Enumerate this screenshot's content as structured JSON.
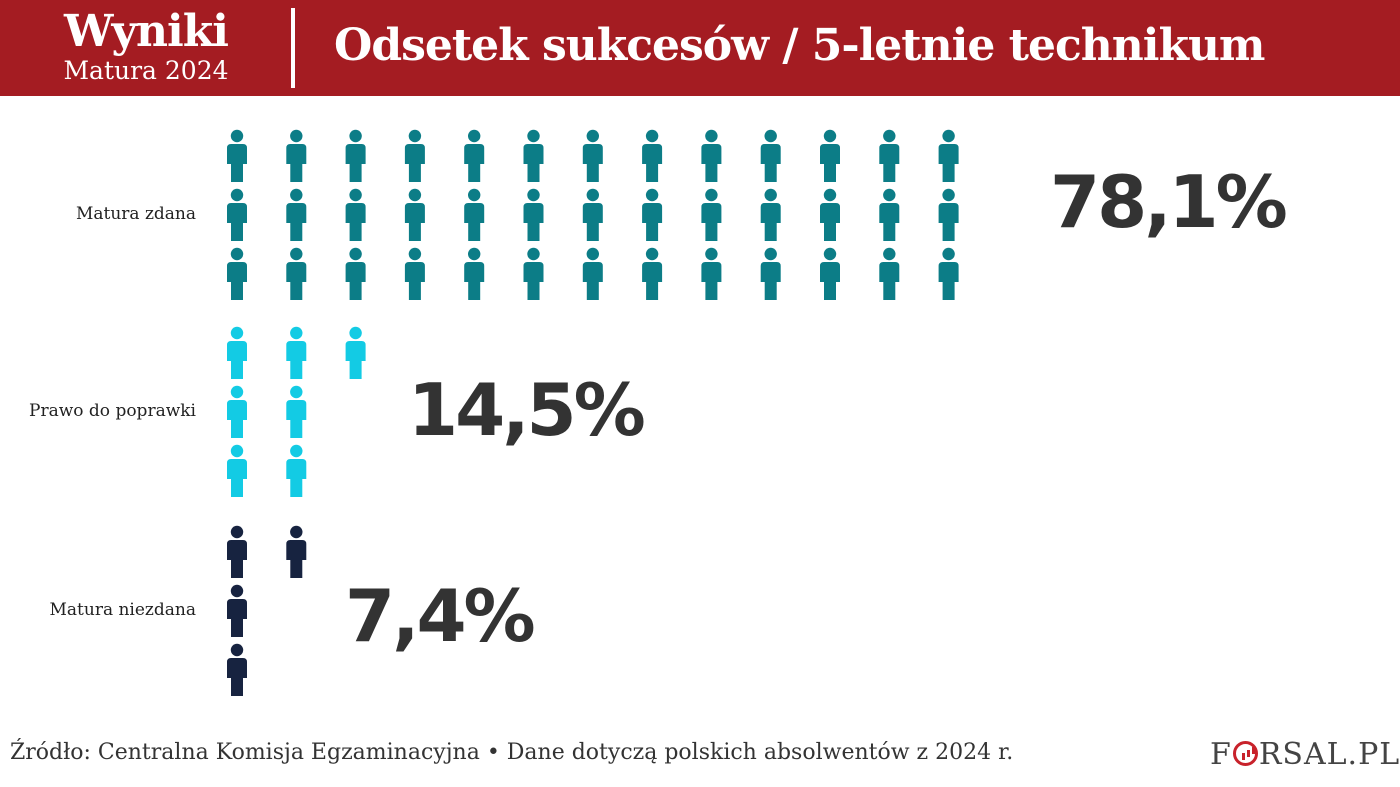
{
  "header": {
    "brand_title": "Wyniki",
    "brand_subtitle": "Matura 2024",
    "title": "Odsetek sukcesów / 5-letnie technikum"
  },
  "chart_data": {
    "type": "pictogram",
    "title": "Odsetek sukcesów / 5-letnie technikum",
    "groups": [
      {
        "label": "Matura zdana",
        "value": 78.1,
        "value_label": "78,1%",
        "icons": 39,
        "rows": 3,
        "color": "#0c7d87"
      },
      {
        "label": "Prawo do poprawki",
        "value": 14.5,
        "value_label": "14,5%",
        "icons": 7,
        "rows": 3,
        "color": "#13cbe4"
      },
      {
        "label": "Matura niezdana",
        "value": 7.4,
        "value_label": "7,4%",
        "icons": 4,
        "rows": 3,
        "color": "#172340"
      }
    ]
  },
  "footer": {
    "source": "Źródło: Centralna Komisja Egzaminacyjna • Dane dotyczą polskich absolwentów z 2024 r.",
    "logo_f": "F",
    "logo_rest": "RSAL.PL"
  }
}
